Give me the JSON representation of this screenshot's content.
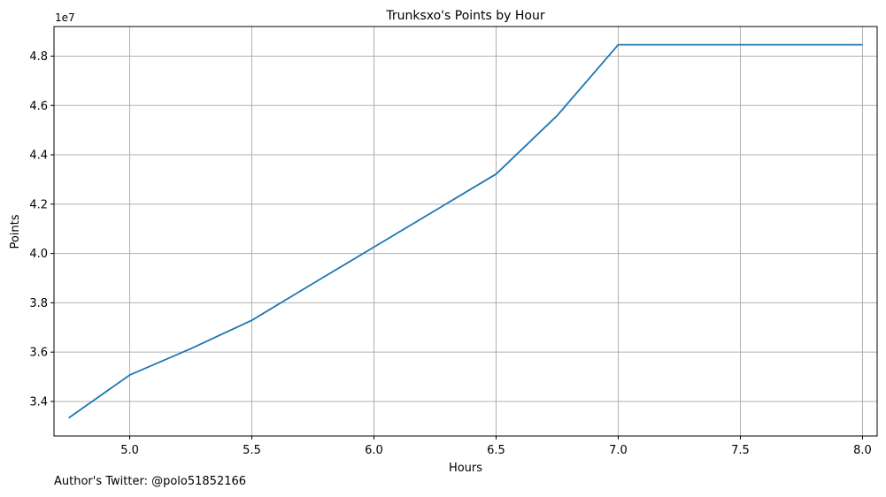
{
  "chart_data": {
    "type": "line",
    "title": "Trunksxo's Points by Hour",
    "xlabel": "Hours",
    "ylabel": "Points",
    "y_offset_text": "1e7",
    "xlim": [
      4.69,
      8.06
    ],
    "ylim": [
      32600000,
      49200000
    ],
    "x_ticks": [
      5.0,
      5.5,
      6.0,
      6.5,
      7.0,
      7.5,
      8.0
    ],
    "x_tick_labels": [
      "5.0",
      "5.5",
      "6.0",
      "6.5",
      "7.0",
      "7.5",
      "8.0"
    ],
    "y_ticks": [
      34000000,
      36000000,
      38000000,
      40000000,
      42000000,
      44000000,
      46000000,
      48000000
    ],
    "y_tick_labels": [
      "3.4",
      "3.6",
      "3.8",
      "4.0",
      "4.2",
      "4.4",
      "4.6",
      "4.8"
    ],
    "grid": true,
    "line_color": "#1f77b4",
    "series": [
      {
        "x": [
          4.75,
          5.0,
          5.25,
          5.5,
          5.75,
          6.0,
          6.25,
          6.5,
          6.75,
          7.0,
          7.25,
          7.5,
          7.75,
          8.0
        ],
        "values": [
          33330000,
          35070000,
          36140000,
          37290000,
          38780000,
          40260000,
          41740000,
          43220000,
          45590000,
          48460000,
          48460000,
          48460000,
          48460000,
          48460000
        ]
      }
    ]
  },
  "footer": {
    "text": "Author's Twitter: @polo51852166"
  }
}
